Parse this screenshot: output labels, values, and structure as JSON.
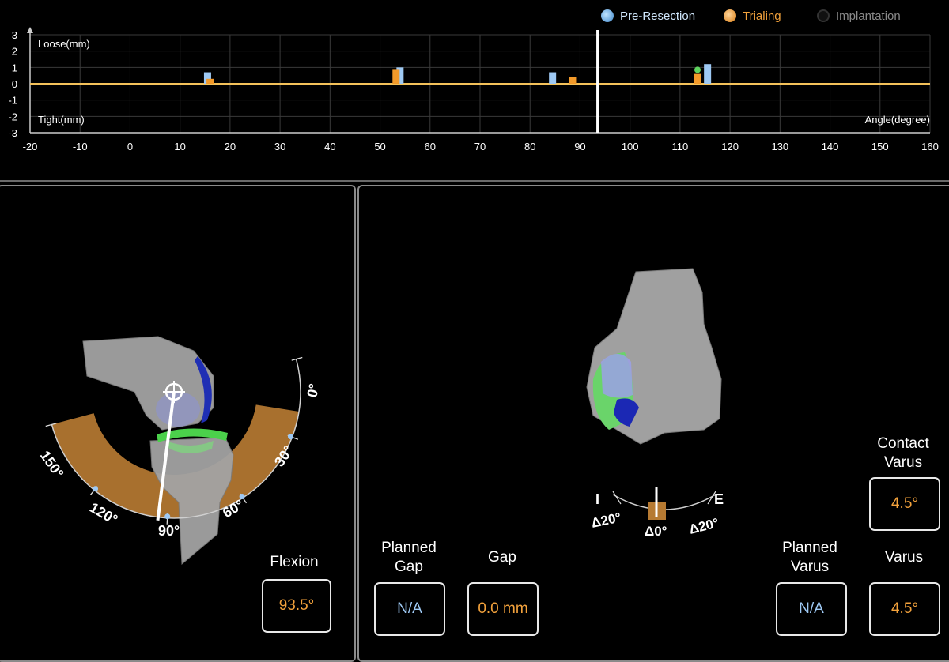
{
  "legend": {
    "items": [
      {
        "label": "Pre-Resection",
        "color": "#6fb6f0",
        "state": "checked"
      },
      {
        "label": "Trialing",
        "color": "#f39a2a",
        "state": "checked"
      },
      {
        "label": "Implantation",
        "color": "#666666",
        "state": "pending"
      }
    ]
  },
  "chart_data": {
    "type": "bar",
    "ylabel_top": "Loose(mm)",
    "ylabel_bottom": "Tight(mm)",
    "xlabel": "Angle(degree)",
    "xlim": [
      -20,
      160
    ],
    "ylim": [
      -3,
      3
    ],
    "x_ticks": [
      -20,
      -10,
      0,
      10,
      20,
      30,
      40,
      50,
      60,
      70,
      80,
      90,
      100,
      110,
      120,
      130,
      140,
      150,
      160
    ],
    "y_ticks": [
      3,
      2,
      1,
      0,
      -1,
      -2,
      -3
    ],
    "current_angle": 93.5,
    "series": [
      {
        "name": "Pre-Resection",
        "color": "#9ec9f4",
        "points": [
          [
            15.5,
            0.7
          ],
          [
            54,
            1.0
          ],
          [
            84.5,
            0.7
          ],
          [
            115.5,
            1.2
          ]
        ]
      },
      {
        "name": "Trialing",
        "color": "#f39a2a",
        "points": [
          [
            16,
            0.3
          ],
          [
            53.2,
            0.9
          ],
          [
            88.5,
            0.4
          ],
          [
            113.5,
            0.6
          ]
        ]
      }
    ],
    "markers": [
      {
        "x": 113.5,
        "y": 0.85,
        "color": "#5ed35e"
      }
    ],
    "grid": true
  },
  "flexion_panel": {
    "arc_labels": [
      "0°",
      "30°",
      "60°",
      "90°",
      "120°",
      "150°"
    ],
    "flexion_label": "Flexion",
    "flexion_value": "93.5°"
  },
  "rotation_panel": {
    "gauge": {
      "left": "I",
      "right": "E",
      "left_value": "Δ20°",
      "center_value": "Δ0°",
      "right_value": "Δ20°"
    },
    "planned_gap_label": "Planned Gap",
    "planned_gap_value": "N/A",
    "gap_label": "Gap",
    "gap_value": "0.0 mm",
    "contact_varus_label": "Contact Varus",
    "contact_varus_value": "4.5°",
    "planned_varus_label": "Planned Varus",
    "planned_varus_value": "N/A",
    "varus_label": "Varus",
    "varus_value": "4.5°"
  }
}
